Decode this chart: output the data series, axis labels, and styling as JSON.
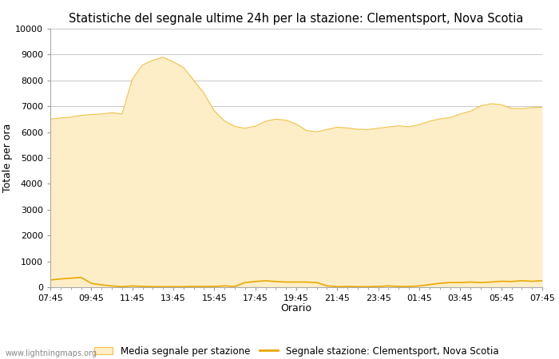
{
  "title": "Statistiche del segnale ultime 24h per la stazione: Clementsport, Nova Scotia",
  "xlabel": "Orario",
  "ylabel": "Totale per ora",
  "xlabels": [
    "07:45",
    "09:45",
    "11:45",
    "13:45",
    "15:45",
    "17:45",
    "19:45",
    "21:45",
    "23:45",
    "01:45",
    "03:45",
    "05:45",
    "07:45"
  ],
  "ylim": [
    0,
    10000
  ],
  "yticks": [
    0,
    1000,
    2000,
    3000,
    4000,
    5000,
    6000,
    7000,
    8000,
    9000,
    10000
  ],
  "fill_color": "#fdeec8",
  "fill_edge_color": "#f0c040",
  "line_color": "#e8a800",
  "watermark": "www.lightningmaps.org",
  "legend_fill_label": "Media segnale per stazione",
  "legend_line_label": "Segnale stazione: Clementsport, Nova Scotia",
  "background_color": "#ffffff",
  "grid_color": "#c8c8c8",
  "avg_y": [
    6500,
    6550,
    6580,
    6650,
    6680,
    6700,
    6750,
    6700,
    8050,
    8600,
    8780,
    8900,
    8720,
    8500,
    8000,
    7500,
    6820,
    6430,
    6220,
    6150,
    6230,
    6420,
    6500,
    6460,
    6310,
    6060,
    6010,
    6100,
    6190,
    6160,
    6110,
    6100,
    6150,
    6200,
    6240,
    6210,
    6290,
    6420,
    6510,
    6560,
    6700,
    6810,
    7010,
    7100,
    7060,
    6920,
    6910,
    6950,
    6960
  ],
  "station_y": [
    280,
    320,
    350,
    380,
    150,
    90,
    50,
    20,
    50,
    30,
    20,
    20,
    20,
    20,
    30,
    30,
    30,
    50,
    30,
    180,
    220,
    250,
    220,
    200,
    200,
    200,
    180,
    50,
    20,
    30,
    20,
    20,
    30,
    50,
    30,
    30,
    50,
    100,
    150,
    180,
    180,
    200,
    180,
    200,
    230,
    220,
    250,
    230,
    250
  ]
}
